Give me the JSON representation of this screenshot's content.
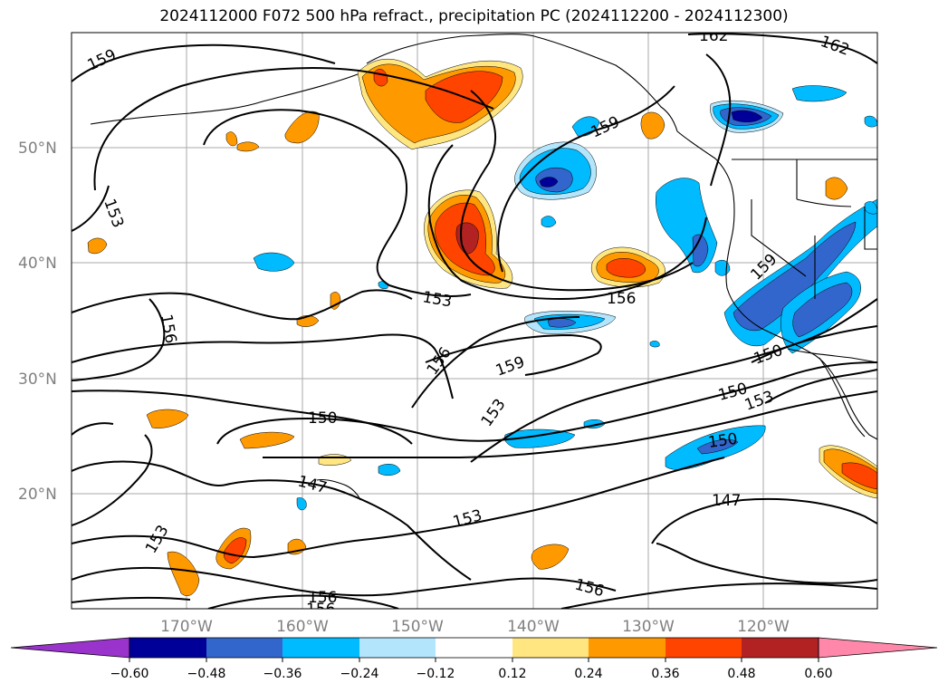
{
  "title": "2024112000 F072 500 hPa refract., precipitation PC (2024112200 - 2024112300)",
  "lat_labels": [
    "50°N",
    "40°N",
    "30°N",
    "20°N"
  ],
  "lon_labels": [
    "170°W",
    "160°W",
    "150°W",
    "140°W",
    "130°W",
    "120°W"
  ],
  "contour_labels": [
    "159",
    "162",
    "162",
    "159",
    "153",
    "153",
    "156",
    "159",
    "156",
    "156",
    "159",
    "153",
    "150",
    "150",
    "153",
    "150",
    "150",
    "147",
    "147",
    "153",
    "153",
    "156",
    "156",
    "156"
  ],
  "colorbar": {
    "ticks": [
      "−0.60",
      "−0.48",
      "−0.36",
      "−0.24",
      "−0.12",
      "0.12",
      "0.24",
      "0.36",
      "0.48",
      "0.60"
    ],
    "colors": [
      "#9933cc",
      "#000099",
      "#3366cc",
      "#00bbff",
      "#b3e5fc",
      "#ffffff",
      "#ffe680",
      "#ff9900",
      "#ff4400",
      "#b22222",
      "#ff88aa"
    ]
  },
  "colors": {
    "coast": "#000000",
    "grid": "#aaaaaa",
    "contour": "#000000"
  }
}
